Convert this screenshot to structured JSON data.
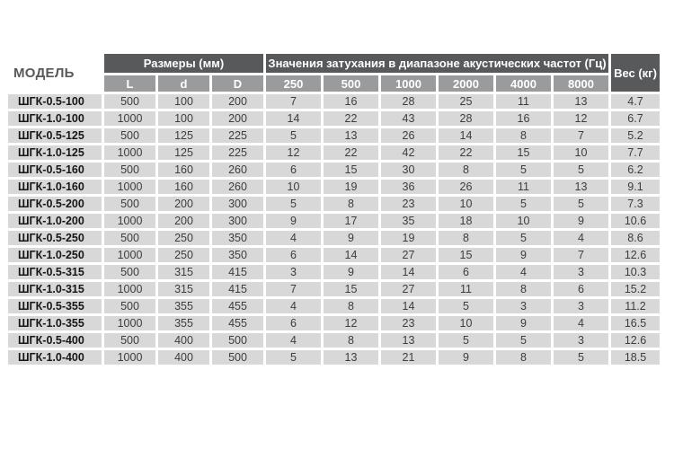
{
  "chart_data": {
    "type": "table",
    "title": "",
    "headers": {
      "model": "МОДЕЛЬ",
      "dimensions_group": "Размеры (мм)",
      "attenuation_group": "Значения затухания в диапазоне акустических частот (Гц)",
      "weight": "Вес (кг)",
      "dimension_cols": [
        "L",
        "d",
        "D"
      ],
      "frequency_cols": [
        "250",
        "500",
        "1000",
        "2000",
        "4000",
        "8000"
      ]
    },
    "rows": [
      {
        "model": "ШГК-0.5-100",
        "L": 500,
        "d": 100,
        "D": 200,
        "f250": 7,
        "f500": 16,
        "f1000": 28,
        "f2000": 25,
        "f4000": 11,
        "f8000": 13,
        "weight": 4.7
      },
      {
        "model": "ШГК-1.0-100",
        "L": 1000,
        "d": 100,
        "D": 200,
        "f250": 14,
        "f500": 22,
        "f1000": 43,
        "f2000": 28,
        "f4000": 16,
        "f8000": 12,
        "weight": 6.7
      },
      {
        "model": "ШГК-0.5-125",
        "L": 500,
        "d": 125,
        "D": 225,
        "f250": 5,
        "f500": 13,
        "f1000": 26,
        "f2000": 14,
        "f4000": 8,
        "f8000": 7,
        "weight": 5.2
      },
      {
        "model": "ШГК-1.0-125",
        "L": 1000,
        "d": 125,
        "D": 225,
        "f250": 12,
        "f500": 22,
        "f1000": 42,
        "f2000": 22,
        "f4000": 15,
        "f8000": 10,
        "weight": 7.7
      },
      {
        "model": "ШГК-0.5-160",
        "L": 500,
        "d": 160,
        "D": 260,
        "f250": 6,
        "f500": 15,
        "f1000": 30,
        "f2000": 8,
        "f4000": 5,
        "f8000": 5,
        "weight": 6.2
      },
      {
        "model": "ШГК-1.0-160",
        "L": 1000,
        "d": 160,
        "D": 260,
        "f250": 10,
        "f500": 19,
        "f1000": 36,
        "f2000": 26,
        "f4000": 11,
        "f8000": 13,
        "weight": 9.1
      },
      {
        "model": "ШГК-0.5-200",
        "L": 500,
        "d": 200,
        "D": 300,
        "f250": 5,
        "f500": 8,
        "f1000": 23,
        "f2000": 10,
        "f4000": 5,
        "f8000": 5,
        "weight": 7.3
      },
      {
        "model": "ШГК-1.0-200",
        "L": 1000,
        "d": 200,
        "D": 300,
        "f250": 9,
        "f500": 17,
        "f1000": 35,
        "f2000": 18,
        "f4000": 10,
        "f8000": 9,
        "weight": 10.6
      },
      {
        "model": "ШГК-0.5-250",
        "L": 500,
        "d": 250,
        "D": 350,
        "f250": 4,
        "f500": 9,
        "f1000": 19,
        "f2000": 8,
        "f4000": 5,
        "f8000": 4,
        "weight": 8.6
      },
      {
        "model": "ШГК-1.0-250",
        "L": 1000,
        "d": 250,
        "D": 350,
        "f250": 6,
        "f500": 14,
        "f1000": 27,
        "f2000": 15,
        "f4000": 9,
        "f8000": 7,
        "weight": 12.6
      },
      {
        "model": "ШГК-0.5-315",
        "L": 500,
        "d": 315,
        "D": 415,
        "f250": 3,
        "f500": 9,
        "f1000": 14,
        "f2000": 6,
        "f4000": 4,
        "f8000": 3,
        "weight": 10.3
      },
      {
        "model": "ШГК-1.0-315",
        "L": 1000,
        "d": 315,
        "D": 415,
        "f250": 7,
        "f500": 15,
        "f1000": 27,
        "f2000": 11,
        "f4000": 8,
        "f8000": 6,
        "weight": 15.2
      },
      {
        "model": "ШГК-0.5-355",
        "L": 500,
        "d": 355,
        "D": 455,
        "f250": 4,
        "f500": 8,
        "f1000": 14,
        "f2000": 5,
        "f4000": 3,
        "f8000": 3,
        "weight": 11.2
      },
      {
        "model": "ШГК-1.0-355",
        "L": 1000,
        "d": 355,
        "D": 455,
        "f250": 6,
        "f500": 12,
        "f1000": 23,
        "f2000": 10,
        "f4000": 9,
        "f8000": 4,
        "weight": 16.5
      },
      {
        "model": "ШГК-0.5-400",
        "L": 500,
        "d": 400,
        "D": 500,
        "f250": 4,
        "f500": 8,
        "f1000": 13,
        "f2000": 5,
        "f4000": 5,
        "f8000": 3,
        "weight": 12.6
      },
      {
        "model": "ШГК-1.0-400",
        "L": 1000,
        "d": 400,
        "D": 500,
        "f250": 5,
        "f500": 13,
        "f1000": 21,
        "f2000": 9,
        "f4000": 8,
        "f8000": 5,
        "weight": 18.5
      }
    ],
    "layout": {
      "grid": "white 3px gaps between cells",
      "legend_position": "none"
    }
  },
  "colors": {
    "header_dark_bg": "#58595b",
    "header_mid_bg": "#9a9b9d",
    "row_bg": "#d8d8d8",
    "header_text": "#ffffff",
    "model_header_text": "#58595b",
    "cell_text": "#3d3d3d",
    "model_text": "#161616",
    "page_bg": "#ffffff"
  }
}
